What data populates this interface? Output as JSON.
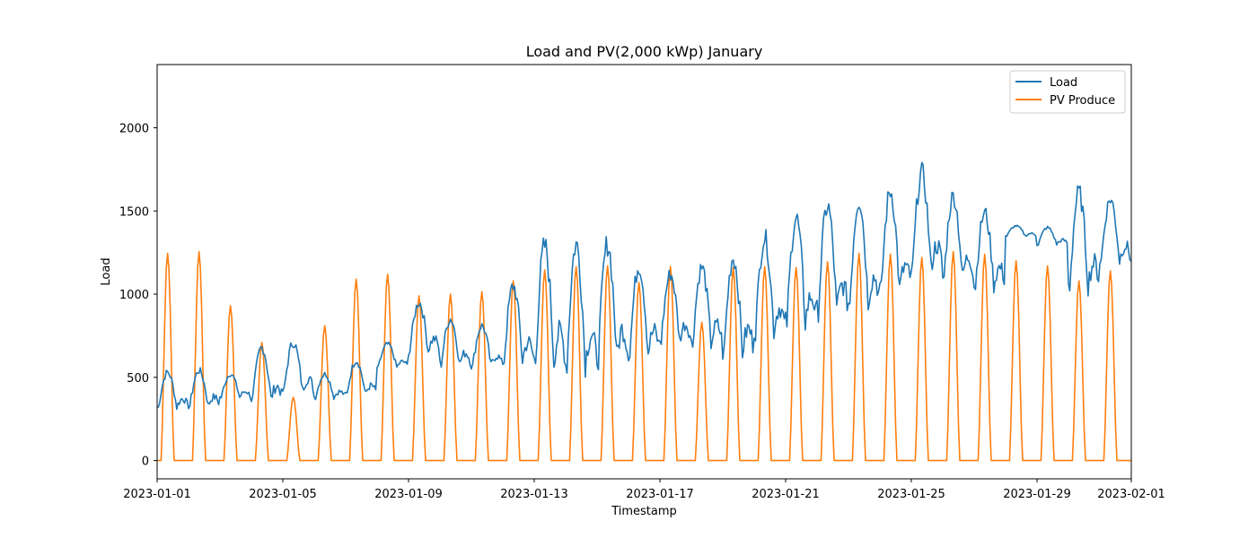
{
  "chart_data": {
    "type": "line",
    "title": "Load and PV(2,000 kWp) January",
    "xlabel": "Timestamp",
    "ylabel": "Load",
    "xlim": [
      "2023-01-01",
      "2023-02-01"
    ],
    "ylim": [
      -110,
      2380
    ],
    "x_ticks": [
      "2023-01-01",
      "2023-01-05",
      "2023-01-09",
      "2023-01-13",
      "2023-01-17",
      "2023-01-21",
      "2023-01-25",
      "2023-01-29",
      "2023-02-01"
    ],
    "y_ticks": [
      0,
      500,
      1000,
      1500,
      2000
    ],
    "grid": false,
    "legend_position": "top-right",
    "series": [
      {
        "name": "Load",
        "color": "#1f77b4",
        "night": [
          320,
          330,
          380,
          370,
          420,
          380,
          400,
          560,
          660,
          580,
          570,
          600,
          600,
          580,
          620,
          650,
          720,
          700,
          650,
          780,
          830,
          900,
          950,
          1020,
          1150,
          1100,
          1050,
          1350,
          1300,
          1050,
          1200
        ],
        "peak": [
          530,
          540,
          520,
          680,
          710,
          520,
          600,
          700,
          950,
          850,
          810,
          1050,
          1290,
          1300,
          1300,
          1170,
          1120,
          1160,
          1220,
          1340,
          1460,
          1530,
          1570,
          1620,
          1730,
          1590,
          1490,
          1410,
          1400,
          1610,
          1570
        ]
      },
      {
        "name": "PV Produce",
        "color": "#ff7f0e",
        "peaks": [
          1245,
          1255,
          930,
          710,
          380,
          810,
          1090,
          1120,
          990,
          1000,
          1015,
          1080,
          1145,
          1165,
          1170,
          1070,
          1165,
          830,
          1160,
          1165,
          1160,
          1195,
          1245,
          1240,
          1220,
          1255,
          1240,
          1200,
          1170,
          1080,
          1140
        ]
      }
    ]
  }
}
